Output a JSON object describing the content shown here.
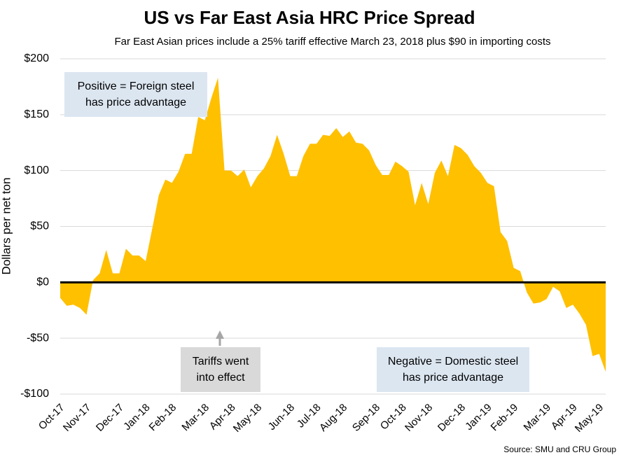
{
  "chart_data": {
    "type": "area",
    "title": "US vs Far East Asia HRC Price Spread",
    "subtitle": "Far East Asian prices include a 25% tariff effective March 23, 2018 plus $90 in importing costs",
    "y_label": "Dollars per net ton",
    "source": "Source: SMU and CRU Group",
    "annotations": [
      {
        "lines": [
          "Positive = Foreign steel",
          "has price advantage"
        ]
      },
      {
        "lines": [
          "Tariffs went",
          "into effect"
        ]
      },
      {
        "lines": [
          "Negative = Domestic steel",
          "has price advantage"
        ]
      }
    ],
    "categories": [
      "Oct-17",
      null,
      null,
      null,
      "Nov-17",
      null,
      null,
      null,
      null,
      "Dec-17",
      null,
      null,
      null,
      "Jan-18",
      null,
      null,
      null,
      "Feb-18",
      null,
      null,
      null,
      null,
      "Mar-18",
      null,
      null,
      null,
      "Apr-18",
      null,
      null,
      null,
      "May-18",
      null,
      null,
      null,
      null,
      "Jun-18",
      null,
      null,
      null,
      "Jul-18",
      null,
      null,
      null,
      "Aug-18",
      null,
      null,
      null,
      null,
      "Sep-18",
      null,
      null,
      null,
      "Oct-18",
      null,
      null,
      null,
      "Nov-18",
      null,
      null,
      null,
      null,
      "Dec-18",
      null,
      null,
      null,
      "Jan-19",
      null,
      null,
      null,
      "Feb-19",
      null,
      null,
      null,
      null,
      "Mar-19",
      null,
      null,
      null,
      "Apr-19",
      null,
      null,
      null,
      "May-19",
      null
    ],
    "values": [
      -14,
      -21,
      -20,
      -23,
      -29,
      2,
      8,
      29,
      8,
      8,
      30,
      24,
      24,
      19,
      48,
      78,
      92,
      89,
      99,
      115,
      115,
      148,
      145,
      165,
      183,
      100,
      100,
      95,
      101,
      85,
      95,
      102,
      113,
      132,
      115,
      95,
      95,
      113,
      124,
      124,
      132,
      131,
      138,
      130,
      135,
      125,
      124,
      118,
      105,
      96,
      96,
      108,
      104,
      99,
      69,
      89,
      70,
      98,
      109,
      95,
      123,
      120,
      114,
      104,
      98,
      89,
      86,
      45,
      37,
      13,
      10,
      -9,
      -19,
      -18,
      -15,
      -4,
      -8,
      -23,
      -20,
      -28,
      -38,
      -66,
      -64,
      -80
    ],
    "color": "#ffc000",
    "ylim": [
      -100,
      200
    ],
    "yticks": [
      {
        "value": -100,
        "label": "-$100"
      },
      {
        "value": -50,
        "label": "-$50"
      },
      {
        "value": 0,
        "label": "$0"
      },
      {
        "value": 50,
        "label": "$50"
      },
      {
        "value": 100,
        "label": "$100"
      },
      {
        "value": 150,
        "label": "$150"
      },
      {
        "value": 200,
        "label": "$200"
      }
    ],
    "grid": true
  }
}
